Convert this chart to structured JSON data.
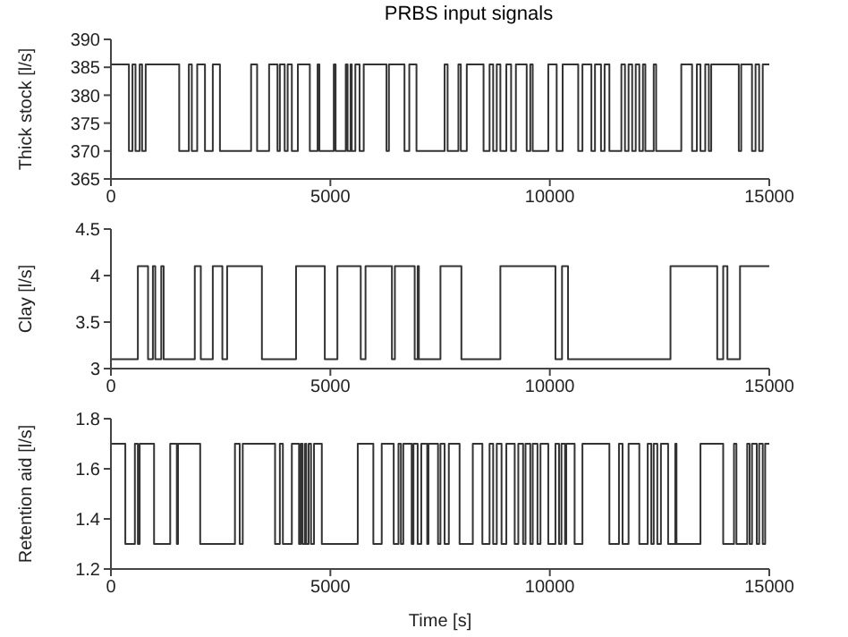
{
  "chart_data": [
    {
      "type": "step",
      "title": "PRBS input signals",
      "ylabel": "Thick stock [l/s]",
      "color": "#333333",
      "xlim": [
        0,
        15000
      ],
      "xticks": [
        0,
        5000,
        10000,
        15000
      ],
      "ylim": [
        365,
        390
      ],
      "yticks": [
        365,
        370,
        375,
        380,
        385,
        390
      ],
      "grid": false,
      "x": [
        0,
        410,
        491,
        560,
        655,
        710,
        792,
        1556,
        1775,
        1843,
        1966,
        2143,
        2321,
        2484,
        3194,
        3331,
        3604,
        3795,
        3849,
        3959,
        4027,
        4122,
        4259,
        4532,
        4709,
        4750,
        5078,
        5119,
        5351,
        5392,
        5460,
        5487,
        5569,
        5665,
        5760,
        6279,
        6334,
        6689,
        6798,
        6962,
        7603,
        7671,
        7917,
        7972,
        8108,
        8490,
        8627,
        8709,
        8791,
        8873,
        9009,
        9118,
        9227,
        9473,
        9555,
        9610,
        9965,
        10156,
        10292,
        10647,
        10743,
        10947,
        11029,
        11166,
        11248,
        11357,
        11630,
        11712,
        11794,
        11876,
        11957,
        12039,
        12121,
        12176,
        12367,
        12422,
        12995,
        13241,
        13350,
        13432,
        13541,
        13623,
        13677,
        14305,
        14360,
        14606,
        14687,
        14769,
        14851,
        15000
      ],
      "values": [
        385.5,
        370,
        385.5,
        370,
        385.5,
        370,
        385.5,
        370,
        385.5,
        370,
        385.5,
        370,
        385.5,
        370,
        385.5,
        370,
        385.5,
        370,
        385.5,
        370,
        385.5,
        370,
        385.5,
        370,
        385.5,
        370,
        385.5,
        370,
        385.5,
        370,
        385.5,
        370,
        385.5,
        370,
        385.5,
        370,
        385.5,
        370,
        385.5,
        370,
        385.5,
        370,
        385.5,
        370,
        385.5,
        370,
        385.5,
        370,
        385.5,
        370,
        385.5,
        370,
        385.5,
        370,
        385.5,
        370,
        385.5,
        370,
        385.5,
        370,
        385.5,
        370,
        385.5,
        370,
        385.5,
        370,
        385.5,
        370,
        385.5,
        370,
        385.5,
        370,
        385.5,
        370,
        385.5,
        370,
        385.5,
        370,
        385.5,
        370,
        385.5,
        370,
        385.5,
        370,
        385.5,
        370,
        385.5,
        370,
        385.5,
        385.5
      ]
    },
    {
      "type": "step",
      "ylabel": "Clay [l/s]",
      "color": "#333333",
      "xlim": [
        0,
        15000
      ],
      "xticks": [
        0,
        5000,
        10000,
        15000
      ],
      "ylim": [
        3,
        4.5
      ],
      "yticks": [
        3,
        3.5,
        4,
        4.5
      ],
      "grid": false,
      "x": [
        0,
        614,
        846,
        956,
        1010,
        1147,
        1201,
        1911,
        2048,
        2321,
        2539,
        2648,
        3440,
        4218,
        4873,
        5160,
        5692,
        5801,
        6402,
        6470,
        6921,
        6989,
        7016,
        7508,
        7985,
        8873,
        10128,
        10278,
        10415,
        12749,
        13814,
        13950,
        14046,
        14333,
        15000
      ],
      "values": [
        3.1,
        4.1,
        3.1,
        4.1,
        3.1,
        4.1,
        3.1,
        4.1,
        3.1,
        4.1,
        3.1,
        4.1,
        3.1,
        4.1,
        3.1,
        4.1,
        3.1,
        4.1,
        3.1,
        4.1,
        3.1,
        4.1,
        3.1,
        4.1,
        3.1,
        4.1,
        3.1,
        4.1,
        3.1,
        4.1,
        3.1,
        4.1,
        3.1,
        4.1,
        4.1
      ]
    },
    {
      "type": "step",
      "ylabel": "Retention aid [l/s]",
      "xlabel": "Time [s]",
      "color": "#333333",
      "xlim": [
        0,
        15000
      ],
      "xticks": [
        0,
        5000,
        10000,
        15000
      ],
      "ylim": [
        1.2,
        1.8
      ],
      "yticks": [
        1.2,
        1.4,
        1.6,
        1.8
      ],
      "grid": false,
      "x": [
        0,
        328,
        546,
        614,
        655,
        983,
        1351,
        1502,
        1529,
        2034,
        2826,
        2935,
        3003,
        3740,
        3849,
        3918,
        4122,
        4286,
        4327,
        4368,
        4423,
        4450,
        4505,
        4559,
        4627,
        4805,
        5624,
        5979,
        6170,
        6443,
        6552,
        6607,
        6661,
        6852,
        6893,
        6989,
        7071,
        7207,
        7235,
        7453,
        7508,
        7603,
        7699,
        7944,
        8245,
        8463,
        8627,
        8709,
        8791,
        8900,
        9009,
        9200,
        9282,
        9391,
        9446,
        9555,
        9610,
        9719,
        9787,
        9965,
        10128,
        10210,
        10265,
        10347,
        10374,
        10565,
        10743,
        11357,
        11575,
        11657,
        11794,
        12039,
        12230,
        12312,
        12367,
        12449,
        12531,
        12695,
        12858,
        12886,
        13432,
        13950,
        14196,
        14251,
        14497,
        14551,
        14606,
        14715,
        14769,
        14851,
        14906,
        15000
      ],
      "values": [
        1.7,
        1.3,
        1.7,
        1.3,
        1.7,
        1.3,
        1.7,
        1.3,
        1.7,
        1.3,
        1.7,
        1.3,
        1.7,
        1.3,
        1.7,
        1.3,
        1.7,
        1.3,
        1.7,
        1.3,
        1.7,
        1.3,
        1.7,
        1.3,
        1.7,
        1.3,
        1.7,
        1.3,
        1.7,
        1.3,
        1.7,
        1.3,
        1.7,
        1.3,
        1.7,
        1.3,
        1.7,
        1.3,
        1.7,
        1.3,
        1.7,
        1.3,
        1.7,
        1.3,
        1.7,
        1.3,
        1.7,
        1.3,
        1.7,
        1.3,
        1.7,
        1.3,
        1.7,
        1.3,
        1.7,
        1.3,
        1.7,
        1.3,
        1.7,
        1.3,
        1.7,
        1.3,
        1.7,
        1.3,
        1.7,
        1.3,
        1.7,
        1.3,
        1.7,
        1.3,
        1.7,
        1.3,
        1.7,
        1.3,
        1.7,
        1.3,
        1.7,
        1.3,
        1.7,
        1.3,
        1.7,
        1.3,
        1.7,
        1.3,
        1.7,
        1.3,
        1.7,
        1.3,
        1.7,
        1.3,
        1.7,
        1.7
      ]
    }
  ]
}
